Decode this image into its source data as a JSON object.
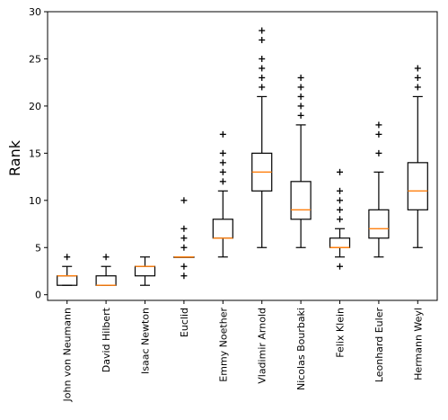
{
  "chart_data": {
    "type": "box",
    "title": "",
    "xlabel": "",
    "ylabel": "Rank",
    "ylim": [
      -0.6,
      30
    ],
    "yticks": [
      0,
      5,
      10,
      15,
      20,
      25,
      30
    ],
    "grid": false,
    "legend": "none",
    "colors": {
      "box": "#000000",
      "median": "#ff7f0e",
      "flier": "#000000"
    },
    "categories": [
      "John von Neumann",
      "David Hilbert",
      "Isaac Newton",
      "Euclid",
      "Emmy Noether",
      "Vladimir Arnold",
      "Nicolas Bourbaki",
      "Felix Klein",
      "Leonhard Euler",
      "Hermann Weyl"
    ],
    "boxes": [
      {
        "whislo": 1,
        "q1": 1,
        "med": 2,
        "q3": 2,
        "whishi": 3,
        "fliers": [
          4
        ]
      },
      {
        "whislo": 1,
        "q1": 1,
        "med": 1,
        "q3": 2,
        "whishi": 3,
        "fliers": [
          4
        ]
      },
      {
        "whislo": 1,
        "q1": 2,
        "med": 3,
        "q3": 3,
        "whishi": 4,
        "fliers": []
      },
      {
        "whislo": 4,
        "q1": 4,
        "med": 4,
        "q3": 4,
        "whishi": 4,
        "fliers": [
          2,
          3,
          5,
          6,
          7,
          10
        ]
      },
      {
        "whislo": 4,
        "q1": 6,
        "med": 6,
        "q3": 8,
        "whishi": 11,
        "fliers": [
          12,
          13,
          14,
          15,
          17
        ]
      },
      {
        "whislo": 5,
        "q1": 11,
        "med": 13,
        "q3": 15,
        "whishi": 21,
        "fliers": [
          22,
          23,
          24,
          25,
          27,
          28
        ]
      },
      {
        "whislo": 5,
        "q1": 8,
        "med": 9,
        "q3": 12,
        "whishi": 18,
        "fliers": [
          19,
          20,
          21,
          22,
          23
        ]
      },
      {
        "whislo": 4,
        "q1": 5,
        "med": 5,
        "q3": 6,
        "whishi": 7,
        "fliers": [
          3,
          8,
          9,
          10,
          11,
          13
        ]
      },
      {
        "whislo": 4,
        "q1": 6,
        "med": 7,
        "q3": 9,
        "whishi": 13,
        "fliers": [
          15,
          17,
          18
        ]
      },
      {
        "whislo": 5,
        "q1": 9,
        "med": 11,
        "q3": 14,
        "whishi": 21,
        "fliers": [
          22,
          23,
          24
        ]
      }
    ]
  }
}
